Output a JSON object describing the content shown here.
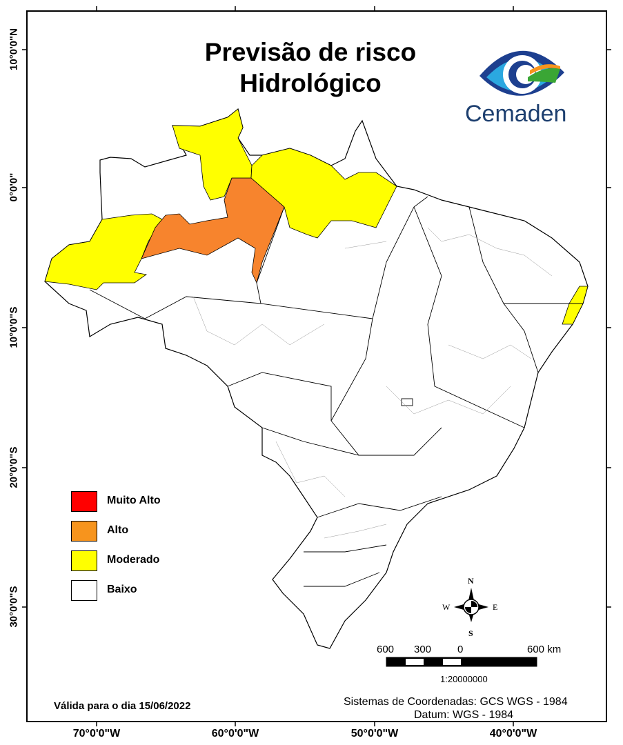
{
  "title": {
    "line1": "Previsão de risco",
    "line2": "Hidrológico"
  },
  "logo": {
    "text": "Cemaden"
  },
  "latitude_labels": [
    "10°0'0\"N",
    "0°0'0\"",
    "10°0'0\"S",
    "20°0'0\"S",
    "30°0'0\"S"
  ],
  "longitude_labels": [
    "70°0'0\"W",
    "60°0'0\"W",
    "50°0'0\"W",
    "40°0'0\"W"
  ],
  "legend": [
    {
      "label": "Muito Alto",
      "color": "#ff0000"
    },
    {
      "label": "Alto",
      "color": "#f7941d"
    },
    {
      "label": "Moderado",
      "color": "#ffff00"
    },
    {
      "label": "Baixo",
      "color": "#ffffff"
    }
  ],
  "compass": {
    "n": "N",
    "s": "S",
    "e": "E",
    "w": "W"
  },
  "scale": {
    "labels": [
      "600",
      "300",
      "0",
      "600 km"
    ],
    "ratio": "1:20000000"
  },
  "validity": "Válida para o dia 15/06/2022",
  "coords": {
    "line1": "Sistemas de Coordenadas: GCS WGS - 1984",
    "line2": "Datum: WGS - 1984"
  }
}
